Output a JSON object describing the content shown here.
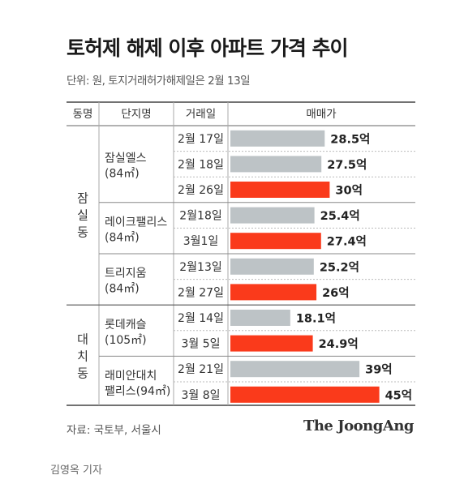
{
  "title": "토허제 해제 이후 아파트 가격 추이",
  "subtitle": "단위: 원, 토지거래허가해제일은 2월 13일",
  "headers": [
    "동명",
    "단지명",
    "거래일",
    "매매가"
  ],
  "chart_data": {
    "type": "bar",
    "unit_suffix": "억",
    "colors": {
      "before": "#bdc3c6",
      "after": "#fa3a1b"
    },
    "groups": [
      {
        "district": "잠실동",
        "complexes": [
          {
            "name": "잠실엘스",
            "size": "(84㎡)",
            "rows": [
              {
                "date": "2월 17일",
                "value": 28.5,
                "label": "28.5억",
                "highlight": false
              },
              {
                "date": "2월 18일",
                "value": 27.5,
                "label": "27.5억",
                "highlight": false
              },
              {
                "date": "2월 26일",
                "value": 30,
                "label": "30억",
                "highlight": true
              }
            ]
          },
          {
            "name": "레이크팰리스",
            "size": "(84㎡)",
            "rows": [
              {
                "date": "2월18일",
                "value": 25.4,
                "label": "25.4억",
                "highlight": false
              },
              {
                "date": "3월1일",
                "value": 27.4,
                "label": "27.4억",
                "highlight": true
              }
            ]
          },
          {
            "name": "트리지움",
            "size": "(84㎡)",
            "rows": [
              {
                "date": "2월13일",
                "value": 25.2,
                "label": "25.2억",
                "highlight": false
              },
              {
                "date": "2월 27일",
                "value": 26,
                "label": "26억",
                "highlight": true
              }
            ]
          }
        ]
      },
      {
        "district": "대치동",
        "complexes": [
          {
            "name": "롯데캐슬",
            "size": "(105㎡)",
            "rows": [
              {
                "date": "2월 14일",
                "value": 18.1,
                "label": "18.1억",
                "highlight": false
              },
              {
                "date": "3월 5일",
                "value": 24.9,
                "label": "24.9억",
                "highlight": true
              }
            ]
          },
          {
            "name": "래미안대치",
            "size": "팰리스(94㎡)",
            "rows": [
              {
                "date": "2월 21일",
                "value": 39,
                "label": "39억",
                "highlight": false
              },
              {
                "date": "3월 8일",
                "value": 45,
                "label": "45억",
                "highlight": true
              }
            ]
          }
        ]
      }
    ]
  },
  "footer": {
    "source": "자료: 국토부, 서울시",
    "brand": "The JoongAng",
    "author": "김영옥 기자"
  }
}
